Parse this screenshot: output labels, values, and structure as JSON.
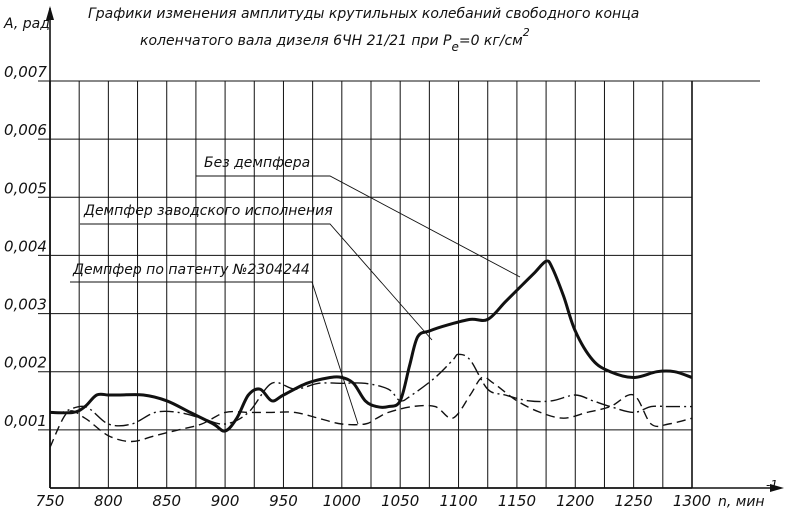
{
  "chart_data": {
    "type": "line",
    "title_line1": "Графики изменения амплитуды крутильных колебаний свободного конца",
    "title_line2_prefix": "коленчатого вала дизеля 6ЧН 21/21 при P",
    "title_line2_sub": "e",
    "title_line2_suffix": "=0 кг/см",
    "title_line2_sup": "2",
    "ylabel": "A, рад",
    "xlabel": "n, мин",
    "xlabel_sup": "-1",
    "xlim": [
      750,
      1300
    ],
    "ylim": [
      0,
      0.007
    ],
    "grid": true,
    "x_ticks": [
      750,
      800,
      850,
      900,
      950,
      1000,
      1050,
      1100,
      1150,
      1200,
      1250,
      1300
    ],
    "x_tick_labels": [
      "750",
      "800",
      "850",
      "900",
      "950",
      "1000",
      "1050",
      "1100",
      "1150",
      "1200",
      "1250",
      "1300"
    ],
    "y_ticks": [
      0.001,
      0.002,
      0.003,
      0.004,
      0.005,
      0.006,
      0.007
    ],
    "y_tick_labels": [
      "0,001",
      "0,002",
      "0,003",
      "0,004",
      "0,005",
      "0,006",
      "0,007"
    ],
    "series": [
      {
        "name": "Без демпфера",
        "style": "solid-bold",
        "x": [
          750,
          770,
          780,
          790,
          800,
          810,
          830,
          850,
          870,
          890,
          900,
          910,
          920,
          930,
          940,
          950,
          970,
          990,
          1000,
          1010,
          1020,
          1030,
          1040,
          1050,
          1058,
          1065,
          1075,
          1090,
          1110,
          1125,
          1140,
          1155,
          1165,
          1175,
          1180,
          1190,
          1200,
          1215,
          1230,
          1250,
          1270,
          1285,
          1300
        ],
        "y": [
          0.0013,
          0.0013,
          0.0014,
          0.0016,
          0.0016,
          0.0016,
          0.0016,
          0.0015,
          0.0013,
          0.0011,
          0.00098,
          0.0012,
          0.0016,
          0.0017,
          0.0015,
          0.0016,
          0.0018,
          0.0019,
          0.0019,
          0.0018,
          0.0015,
          0.0014,
          0.0014,
          0.0015,
          0.0021,
          0.0026,
          0.0027,
          0.0028,
          0.0029,
          0.0029,
          0.0032,
          0.0035,
          0.0037,
          0.0039,
          0.0038,
          0.0033,
          0.0027,
          0.0022,
          0.002,
          0.0019,
          0.002,
          0.002,
          0.0019
        ]
      },
      {
        "name": "Демпфер заводского исполнения",
        "style": "dash-dot",
        "x": [
          750,
          760,
          780,
          800,
          820,
          840,
          860,
          880,
          900,
          920,
          940,
          960,
          980,
          1000,
          1020,
          1040,
          1050,
          1060,
          1080,
          1095,
          1100,
          1110,
          1125,
          1140,
          1160,
          1180,
          1200,
          1215,
          1230,
          1250,
          1265,
          1280,
          1300
        ],
        "y": [
          0.0013,
          0.0013,
          0.0014,
          0.0011,
          0.0011,
          0.0013,
          0.0013,
          0.0012,
          0.0011,
          0.0013,
          0.0018,
          0.0017,
          0.0018,
          0.0018,
          0.0018,
          0.0017,
          0.0015,
          0.0016,
          0.0019,
          0.0022,
          0.0023,
          0.0022,
          0.0017,
          0.0016,
          0.0015,
          0.0015,
          0.0016,
          0.0015,
          0.0014,
          0.0013,
          0.0014,
          0.0014,
          0.0014
        ]
      },
      {
        "name": "Демпфер по патенту №2304244",
        "style": "dashed",
        "x": [
          750,
          765,
          780,
          800,
          820,
          840,
          860,
          880,
          900,
          920,
          940,
          960,
          980,
          1000,
          1020,
          1030,
          1040,
          1060,
          1080,
          1095,
          1110,
          1120,
          1130,
          1150,
          1170,
          1190,
          1210,
          1230,
          1250,
          1265,
          1280,
          1300
        ],
        "y": [
          0.0007,
          0.0013,
          0.0012,
          0.0009,
          0.0008,
          0.0009,
          0.001,
          0.0011,
          0.0013,
          0.0013,
          0.0013,
          0.0013,
          0.0012,
          0.0011,
          0.0011,
          0.0012,
          0.0013,
          0.0014,
          0.0014,
          0.0012,
          0.0016,
          0.0019,
          0.0018,
          0.0015,
          0.0013,
          0.0012,
          0.0013,
          0.0014,
          0.0016,
          0.0011,
          0.0011,
          0.0012
        ]
      }
    ],
    "annotations": [
      {
        "text": "Без демпфера",
        "target_series": 0
      },
      {
        "text": "Демпфер заводского исполнения",
        "target_series": 1
      },
      {
        "text": "Демпфер по патенту №2304244",
        "target_series": 2
      }
    ]
  }
}
